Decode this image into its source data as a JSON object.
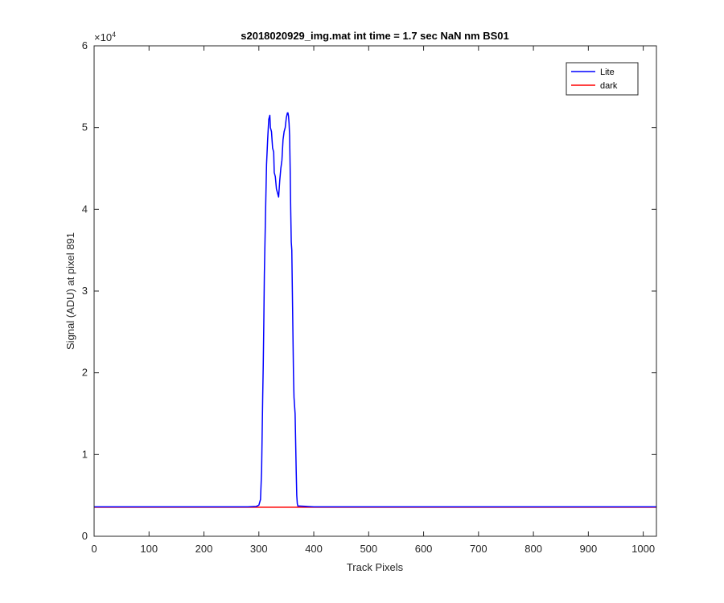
{
  "chart_data": {
    "type": "line",
    "title": "s2018020929_img.mat int time = 1.7 sec  NaN nm BS01",
    "xlabel": "Track Pixels",
    "ylabel": "Signal (ADU) at pixel 891",
    "xlim": [
      0,
      1024
    ],
    "ylim": [
      0,
      60000
    ],
    "xticks": [
      0,
      100,
      200,
      300,
      400,
      500,
      600,
      700,
      800,
      900,
      1000
    ],
    "yticks": [
      0,
      10000,
      20000,
      30000,
      40000,
      50000,
      60000
    ],
    "ytick_labels": [
      "0",
      "1",
      "2",
      "3",
      "4",
      "5",
      "6"
    ],
    "y_exponent_label": "×10",
    "y_exponent_power": "4",
    "grid": false,
    "legend_position": "top-right",
    "series": [
      {
        "name": "Lite",
        "color": "#0000ff",
        "x": [
          0,
          100,
          200,
          280,
          295,
          300,
          303,
          305,
          307,
          308,
          309,
          310,
          312,
          314,
          316,
          318,
          320,
          321,
          323,
          325,
          327,
          328,
          330,
          332,
          334,
          336,
          337,
          338,
          340,
          342,
          344,
          346,
          348,
          350,
          352,
          353,
          354,
          355,
          356,
          357,
          358,
          359,
          360,
          361,
          362,
          363,
          364,
          366,
          368,
          369,
          370,
          371,
          372,
          374,
          400,
          500,
          600,
          700,
          800,
          900,
          1024
        ],
        "y": [
          3600,
          3600,
          3600,
          3600,
          3650,
          3800,
          4500,
          8000,
          17000,
          21000,
          26000,
          32000,
          39000,
          45500,
          48500,
          51000,
          51500,
          50000,
          49500,
          47500,
          47000,
          44500,
          44000,
          42500,
          42000,
          41500,
          42500,
          43500,
          45000,
          46000,
          48500,
          49500,
          50000,
          51200,
          51800,
          51800,
          51400,
          50500,
          49000,
          45000,
          40000,
          36000,
          35000,
          30000,
          25000,
          20000,
          17000,
          15000,
          8000,
          5000,
          4000,
          3700,
          3700,
          3700,
          3600,
          3600,
          3600,
          3600,
          3600,
          3600,
          3600
        ]
      },
      {
        "name": "dark",
        "color": "#ff0000",
        "x": [
          0,
          1024
        ],
        "y": [
          3550,
          3550
        ]
      }
    ]
  }
}
